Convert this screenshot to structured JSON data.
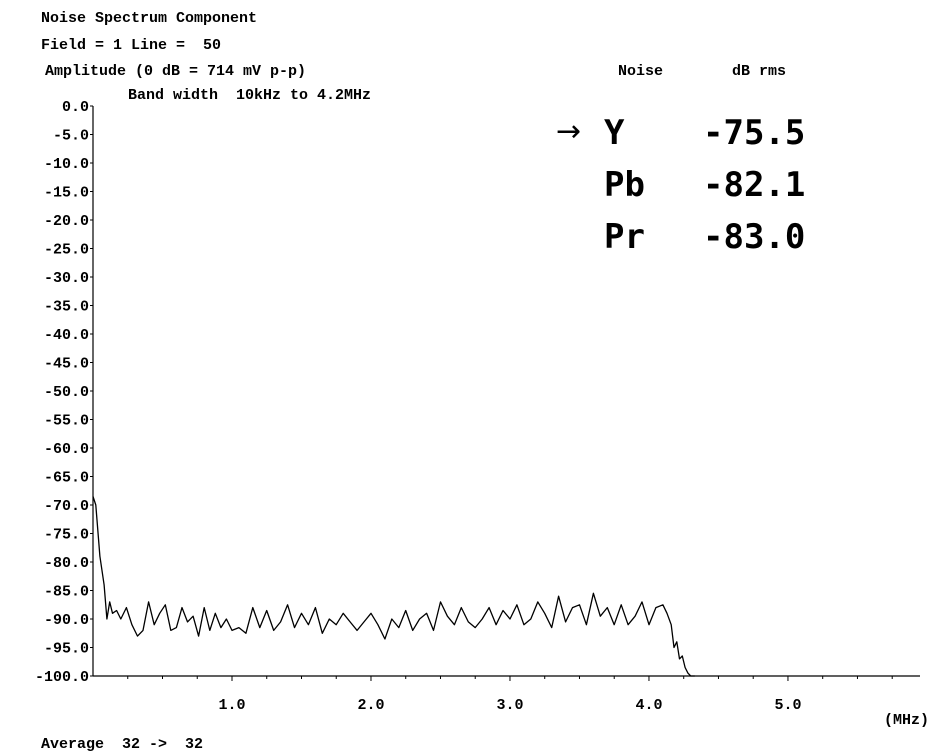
{
  "header": {
    "title": "Noise Spectrum Component",
    "field_line": "Field = 1 Line =  50",
    "amplitude": "Amplitude (0 dB = 714 mV p-p)",
    "bandwidth": "Band width  10kHz to 4.2MHz",
    "col_noise": "Noise",
    "col_db": "dB rms"
  },
  "measurements": [
    {
      "label": "Y",
      "value": "-75.5",
      "selected": true
    },
    {
      "label": "Pb",
      "value": "-82.1",
      "selected": false
    },
    {
      "label": "Pr",
      "value": "-83.0",
      "selected": false
    }
  ],
  "footer": {
    "average": "Average  32 ->  32"
  },
  "chart_data": {
    "type": "line",
    "xlabel": "(MHz)",
    "ylabel": "",
    "xlim": [
      0,
      5.95
    ],
    "ylim": [
      -100,
      0
    ],
    "x_ticks": [
      "1.0",
      "2.0",
      "3.0",
      "4.0",
      "5.0"
    ],
    "y_ticks": [
      "0.0",
      "-5.0",
      "-10.0",
      "-15.0",
      "-20.0",
      "-25.0",
      "-30.0",
      "-35.0",
      "-40.0",
      "-45.0",
      "-50.0",
      "-55.0",
      "-60.0",
      "-65.0",
      "-70.0",
      "-75.0",
      "-80.0",
      "-85.0",
      "-90.0",
      "-95.0",
      "-100.0"
    ],
    "grid": false,
    "series": [
      {
        "x": [
          0.0,
          0.02,
          0.05,
          0.08,
          0.1,
          0.12,
          0.14,
          0.17,
          0.2,
          0.24,
          0.28,
          0.32,
          0.36,
          0.4,
          0.44,
          0.48,
          0.52,
          0.56,
          0.6,
          0.64,
          0.68,
          0.72,
          0.76,
          0.8,
          0.84,
          0.88,
          0.92,
          0.96,
          1.0,
          1.05,
          1.1,
          1.15,
          1.2,
          1.25,
          1.3,
          1.35,
          1.4,
          1.45,
          1.5,
          1.55,
          1.6,
          1.65,
          1.7,
          1.75,
          1.8,
          1.85,
          1.9,
          1.95,
          2.0,
          2.05,
          2.1,
          2.15,
          2.2,
          2.25,
          2.3,
          2.35,
          2.4,
          2.45,
          2.5,
          2.55,
          2.6,
          2.65,
          2.7,
          2.75,
          2.8,
          2.85,
          2.9,
          2.95,
          3.0,
          3.05,
          3.1,
          3.15,
          3.2,
          3.25,
          3.3,
          3.35,
          3.4,
          3.45,
          3.5,
          3.55,
          3.6,
          3.65,
          3.7,
          3.75,
          3.8,
          3.85,
          3.9,
          3.95,
          4.0,
          4.05,
          4.1,
          4.13,
          4.16,
          4.18,
          4.2,
          4.22,
          4.24,
          4.26,
          4.28,
          4.3,
          4.33
        ],
        "y": [
          -68.5,
          -70,
          -79,
          -84,
          -90,
          -87,
          -89,
          -88.5,
          -90,
          -88,
          -91,
          -93,
          -92,
          -87,
          -91,
          -89,
          -87.5,
          -92,
          -91.5,
          -88,
          -90.5,
          -89.5,
          -93,
          -88,
          -92,
          -89,
          -91.5,
          -90,
          -92,
          -91.5,
          -92.5,
          -88,
          -91.5,
          -88.5,
          -92,
          -90.5,
          -87.5,
          -91.5,
          -89,
          -91,
          -88,
          -92.5,
          -90,
          -91,
          -89,
          -90.5,
          -92,
          -90.5,
          -89,
          -91,
          -93.5,
          -90,
          -91.5,
          -88.5,
          -92,
          -90,
          -89,
          -92,
          -87,
          -89.5,
          -91,
          -88,
          -90.5,
          -91.5,
          -90,
          -88,
          -91,
          -88.5,
          -90,
          -87.5,
          -91,
          -90,
          -87,
          -89,
          -91.5,
          -86,
          -90.5,
          -88,
          -87.5,
          -91,
          -85.5,
          -89.5,
          -88,
          -91,
          -87.5,
          -91,
          -89.5,
          -87,
          -91,
          -88,
          -87.5,
          -89,
          -91,
          -95,
          -94,
          -97,
          -96.5,
          -98.5,
          -99.5,
          -100,
          -100
        ]
      }
    ]
  }
}
